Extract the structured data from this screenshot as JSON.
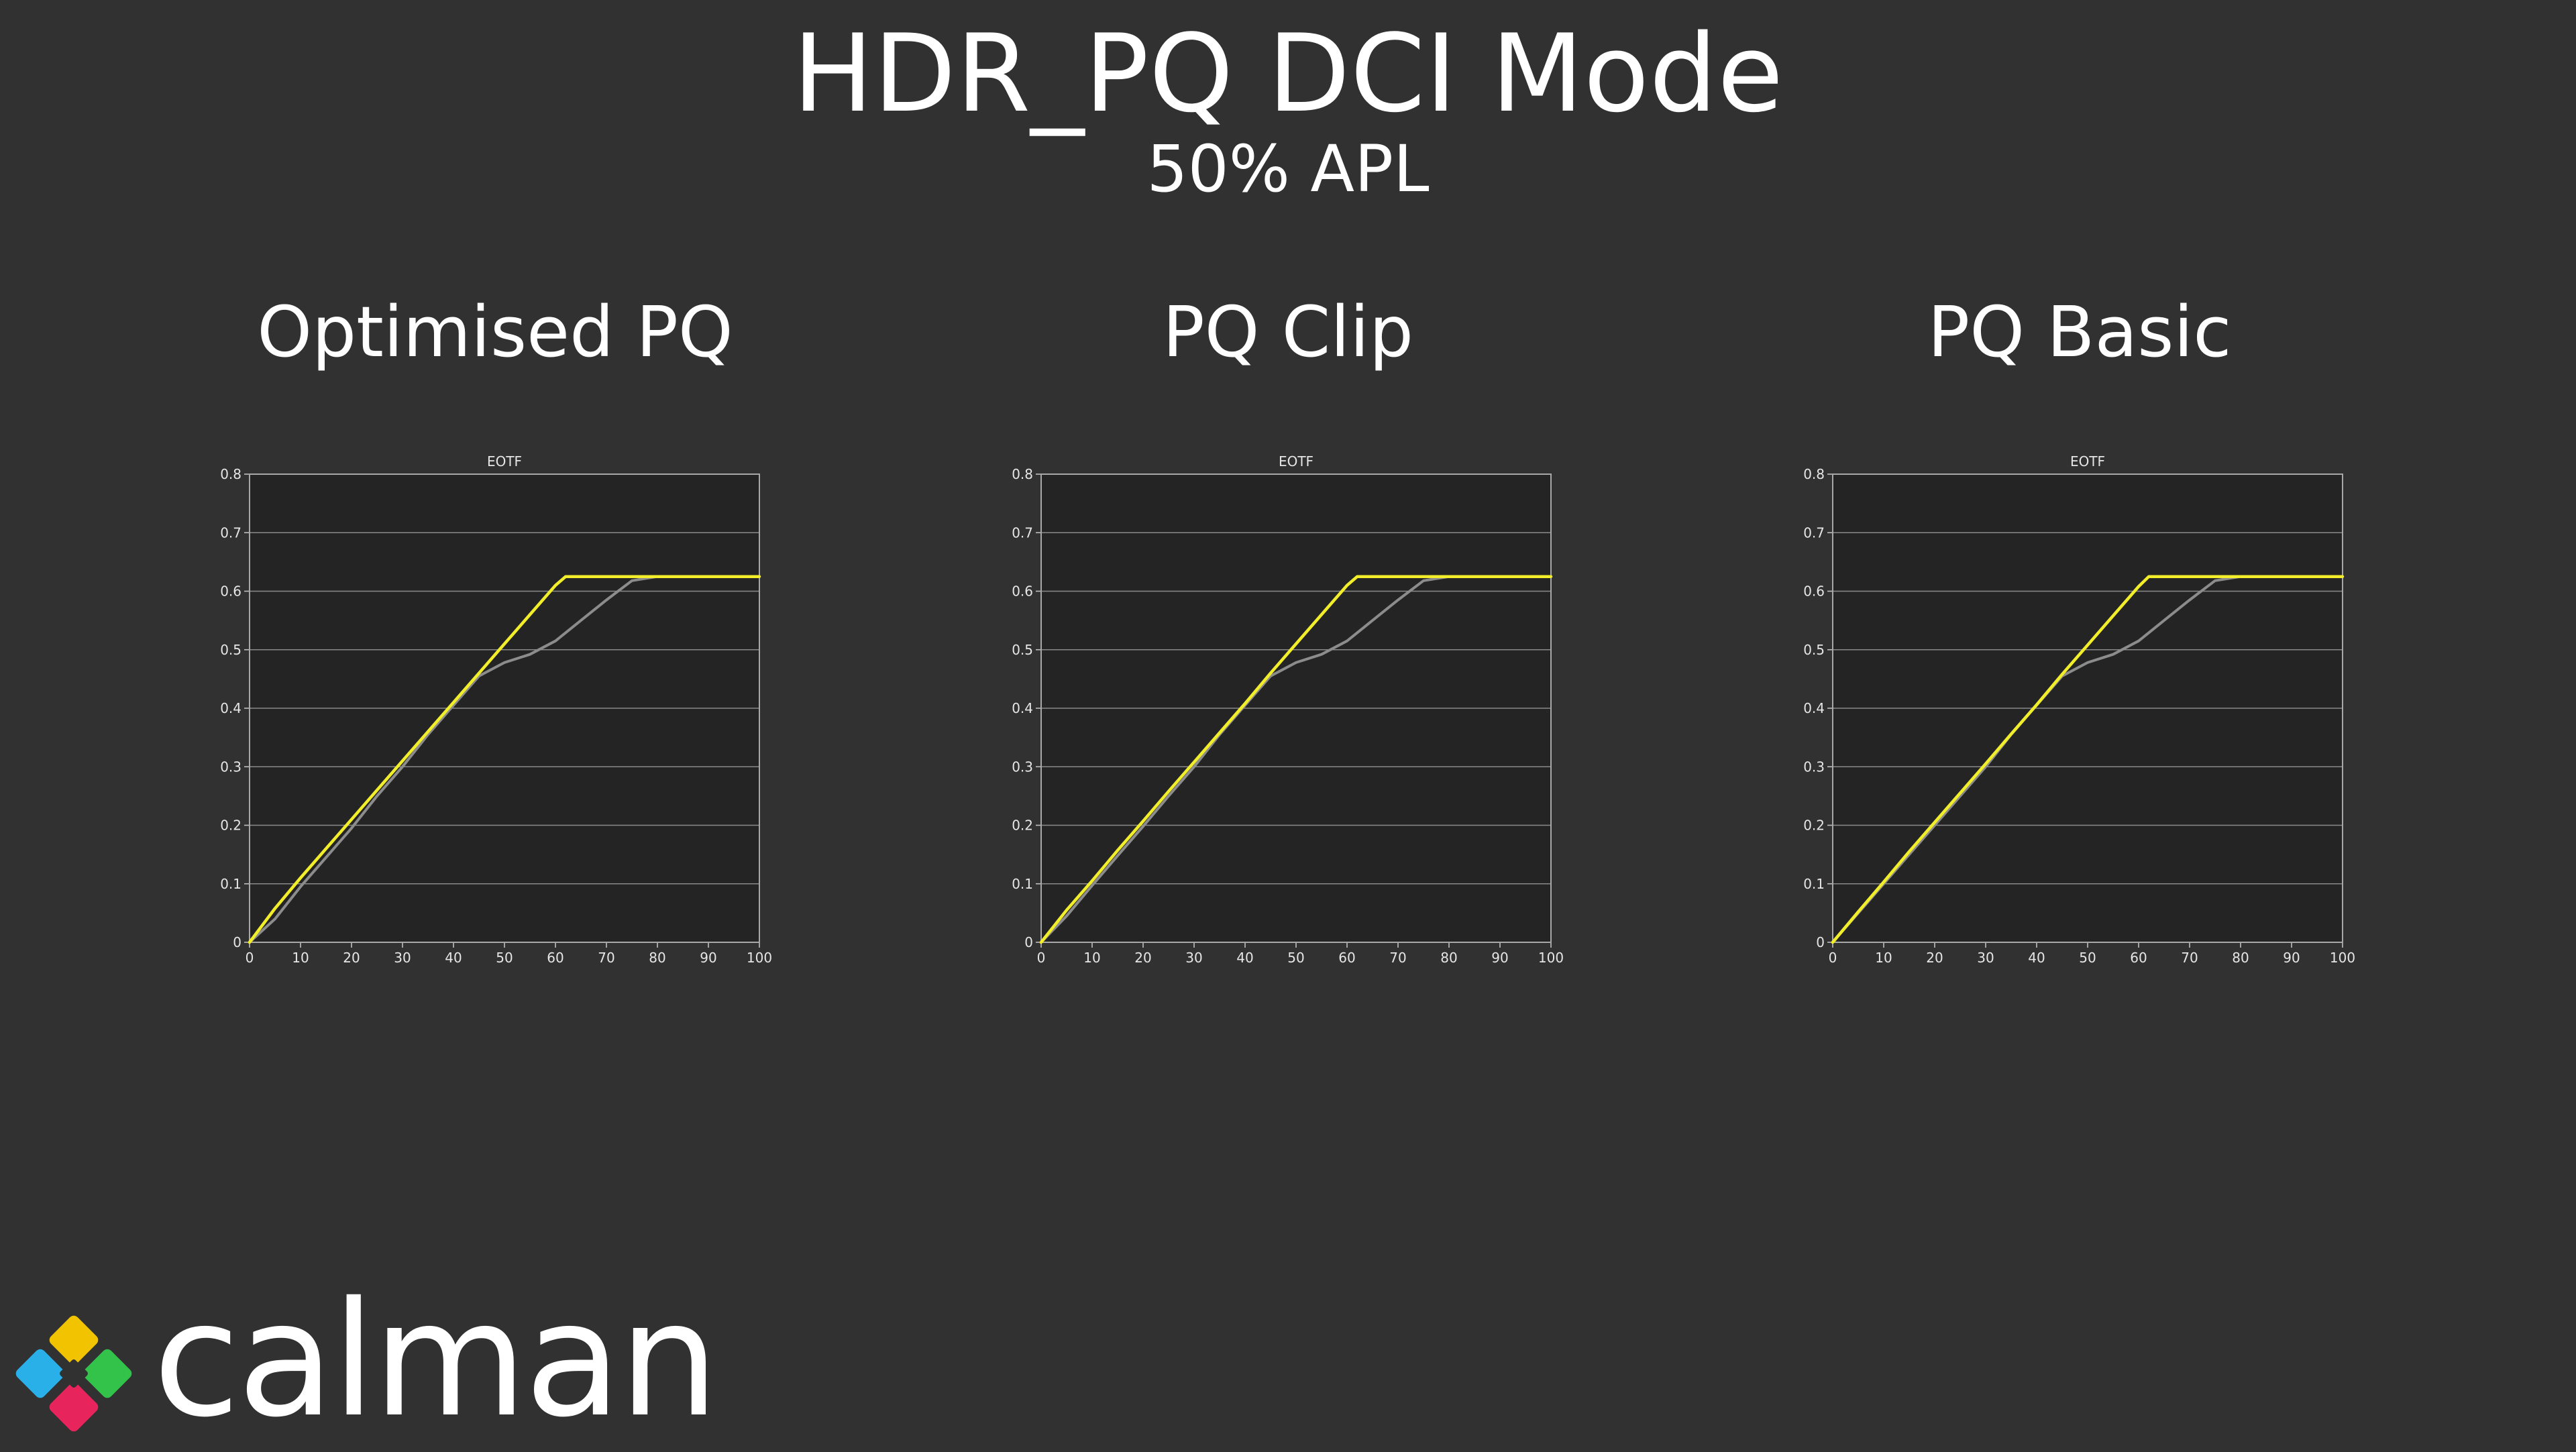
{
  "header": {
    "title": "HDR_PQ DCI Mode",
    "subtitle": "50% APL"
  },
  "logo": {
    "text": "calman",
    "colors": [
      "#f2c300",
      "#2ab0e8",
      "#33c24a",
      "#e8245c"
    ]
  },
  "colors": {
    "background": "#313131",
    "plot_background": "#242424",
    "gridline": "#8a8a8a",
    "target_curve": "#8c8c8c",
    "measured_curve": "#f2ee2a"
  },
  "chart_data": [
    {
      "type": "line",
      "panel_title": "Optimised PQ",
      "title": "EOTF",
      "xlim": [
        0,
        100
      ],
      "ylim": [
        0,
        0.8
      ],
      "xticks": [
        0,
        10,
        20,
        30,
        40,
        50,
        60,
        70,
        80,
        90,
        100
      ],
      "yticks": [
        0,
        0.1,
        0.2,
        0.3,
        0.4,
        0.5,
        0.6,
        0.7,
        0.8
      ],
      "grid": true,
      "series": [
        {
          "color": "#8c8c8c",
          "x": [
            0,
            5,
            10,
            15,
            20,
            25,
            30,
            35,
            40,
            45,
            50,
            55,
            60,
            65,
            70,
            75,
            80,
            90,
            100
          ],
          "y": [
            0,
            0.04,
            0.095,
            0.145,
            0.195,
            0.25,
            0.3,
            0.355,
            0.405,
            0.455,
            0.478,
            0.492,
            0.515,
            0.55,
            0.585,
            0.618,
            0.625,
            0.625,
            0.625
          ]
        },
        {
          "color": "#f2ee2a",
          "x": [
            0,
            5,
            10,
            15,
            20,
            25,
            30,
            35,
            40,
            45,
            50,
            55,
            60,
            62,
            63,
            70,
            80,
            90,
            100
          ],
          "y": [
            0,
            0.058,
            0.11,
            0.16,
            0.21,
            0.26,
            0.31,
            0.36,
            0.41,
            0.46,
            0.51,
            0.56,
            0.61,
            0.625,
            0.625,
            0.625,
            0.625,
            0.625,
            0.625
          ]
        }
      ]
    },
    {
      "type": "line",
      "panel_title": "PQ Clip",
      "title": "EOTF",
      "xlim": [
        0,
        100
      ],
      "ylim": [
        0,
        0.8
      ],
      "xticks": [
        0,
        10,
        20,
        30,
        40,
        50,
        60,
        70,
        80,
        90,
        100
      ],
      "yticks": [
        0,
        0.1,
        0.2,
        0.3,
        0.4,
        0.5,
        0.6,
        0.7,
        0.8
      ],
      "grid": true,
      "series": [
        {
          "color": "#8c8c8c",
          "x": [
            0,
            5,
            10,
            15,
            20,
            25,
            30,
            35,
            40,
            45,
            50,
            55,
            60,
            65,
            70,
            75,
            80,
            90,
            100
          ],
          "y": [
            0,
            0.045,
            0.097,
            0.148,
            0.198,
            0.25,
            0.3,
            0.355,
            0.405,
            0.455,
            0.478,
            0.492,
            0.515,
            0.55,
            0.585,
            0.618,
            0.625,
            0.625,
            0.625
          ]
        },
        {
          "color": "#f2ee2a",
          "x": [
            0,
            5,
            10,
            15,
            20,
            25,
            30,
            35,
            40,
            45,
            50,
            55,
            60,
            62,
            63,
            70,
            80,
            90,
            100
          ],
          "y": [
            0,
            0.055,
            0.105,
            0.157,
            0.207,
            0.258,
            0.308,
            0.358,
            0.408,
            0.46,
            0.51,
            0.56,
            0.61,
            0.625,
            0.625,
            0.625,
            0.625,
            0.625,
            0.625
          ]
        }
      ]
    },
    {
      "type": "line",
      "panel_title": "PQ Basic",
      "title": "EOTF",
      "xlim": [
        0,
        100
      ],
      "ylim": [
        0,
        0.8
      ],
      "xticks": [
        0,
        10,
        20,
        30,
        40,
        50,
        60,
        70,
        80,
        90,
        100
      ],
      "yticks": [
        0,
        0.1,
        0.2,
        0.3,
        0.4,
        0.5,
        0.6,
        0.7,
        0.8
      ],
      "grid": true,
      "series": [
        {
          "color": "#8c8c8c",
          "x": [
            0,
            5,
            10,
            15,
            20,
            25,
            30,
            35,
            40,
            45,
            50,
            55,
            60,
            65,
            70,
            75,
            80,
            90,
            100
          ],
          "y": [
            0,
            0.05,
            0.1,
            0.15,
            0.2,
            0.25,
            0.3,
            0.355,
            0.405,
            0.455,
            0.478,
            0.492,
            0.515,
            0.55,
            0.585,
            0.618,
            0.625,
            0.625,
            0.625
          ]
        },
        {
          "color": "#f2ee2a",
          "x": [
            0,
            5,
            10,
            15,
            20,
            25,
            30,
            35,
            40,
            45,
            50,
            55,
            60,
            62,
            63,
            70,
            80,
            90,
            100
          ],
          "y": [
            0,
            0.052,
            0.103,
            0.155,
            0.205,
            0.255,
            0.305,
            0.356,
            0.406,
            0.458,
            0.508,
            0.558,
            0.608,
            0.625,
            0.625,
            0.625,
            0.625,
            0.625,
            0.625
          ]
        }
      ]
    }
  ]
}
